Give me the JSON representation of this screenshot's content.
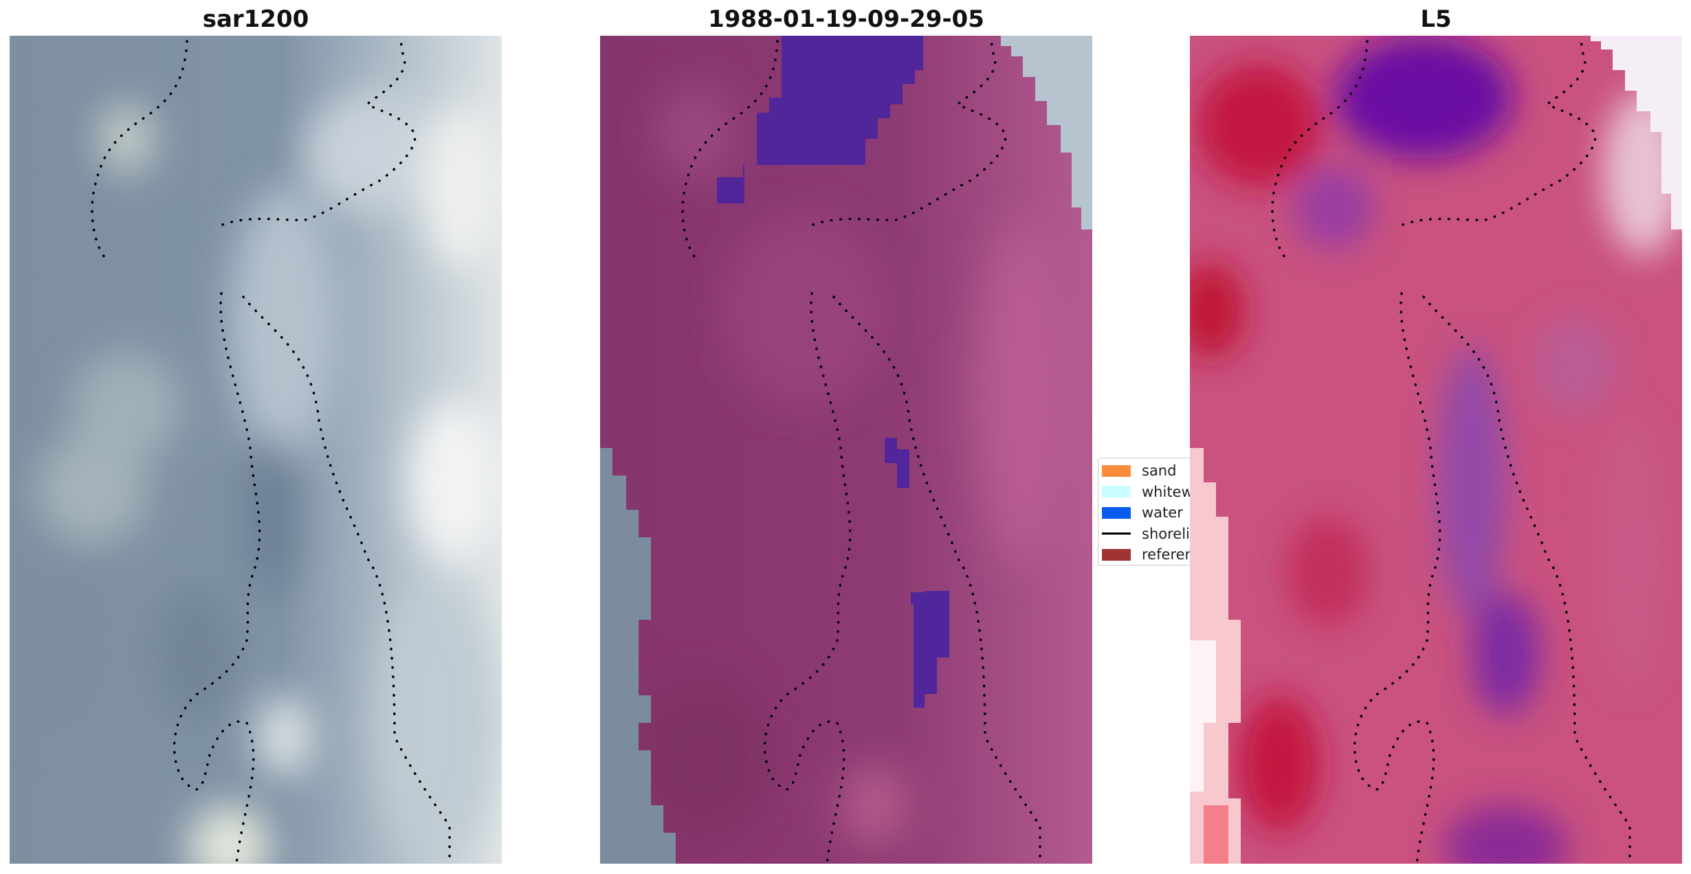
{
  "panels": [
    {
      "title": "sar1200"
    },
    {
      "title": "1988-01-19-09-29-05"
    },
    {
      "title": "L5"
    }
  ],
  "legend": {
    "items": [
      {
        "label": "sand",
        "color": "#fb8c3c",
        "kind": "patch"
      },
      {
        "label": "whitewater",
        "color": "#c9fdff",
        "kind": "patch"
      },
      {
        "label": "water",
        "color": "#0a5cf0",
        "kind": "patch"
      },
      {
        "label": "shoreline",
        "color": "#000000",
        "kind": "line"
      },
      {
        "label": "reference",
        "color": "#a03432",
        "kind": "patch"
      }
    ]
  },
  "colors": {
    "sar_base": "#7b8fa3",
    "sar_light": "#d8dee3",
    "classified_base": "#8c3a72",
    "classified_water": "#4f2a99",
    "l5_base": "#c9527f",
    "l5_purple": "#8a3aa3",
    "l5_red": "#c1173f"
  }
}
